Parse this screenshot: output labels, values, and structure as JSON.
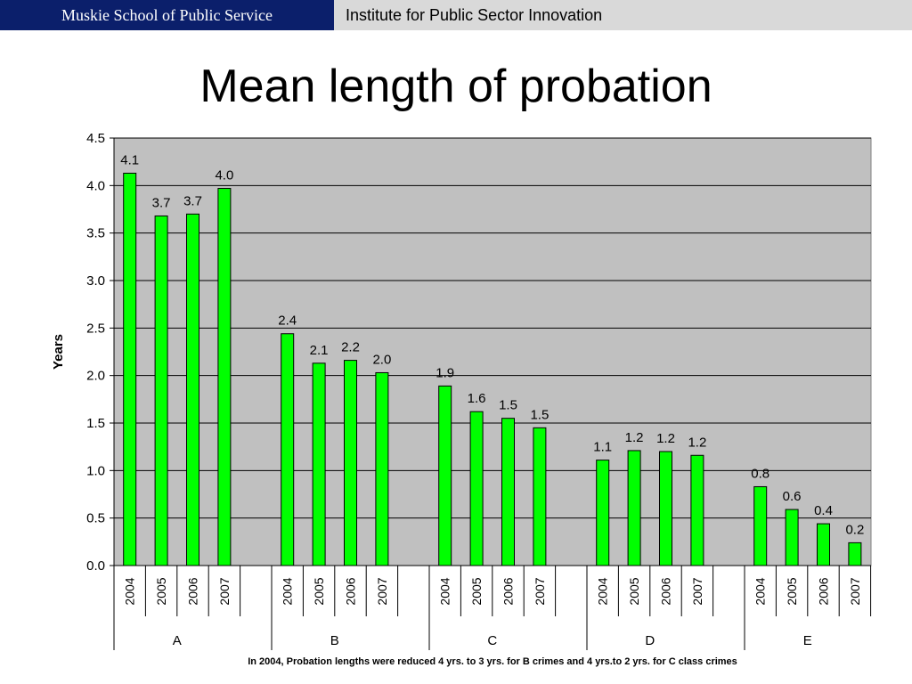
{
  "header": {
    "left": "Muskie School of Public Service",
    "right": "Institute for Public Sector Innovation"
  },
  "title": "Mean length of probation",
  "footnote": "In 2004, Probation lengths were reduced 4 yrs. to 3 yrs. for B crimes and 4 yrs.to 2 yrs. for C class crimes",
  "colors": {
    "bar": "#00ff00",
    "plot_bg": "#c0c0c0",
    "grid": "#000000"
  },
  "chart_data": {
    "type": "bar",
    "ylabel": "Years",
    "ylim": [
      0,
      4.5
    ],
    "yticks": [
      "0.0",
      "0.5",
      "1.0",
      "1.5",
      "2.0",
      "2.5",
      "3.0",
      "3.5",
      "4.0",
      "4.5"
    ],
    "grid": true,
    "groups": [
      {
        "name": "A",
        "categories": [
          "2004",
          "2005",
          "2006",
          "2007"
        ],
        "values": [
          4.13,
          3.68,
          3.7,
          3.97
        ],
        "labels": [
          "4.1",
          "3.7",
          "3.7",
          "4.0"
        ]
      },
      {
        "name": "B",
        "categories": [
          "2004",
          "2005",
          "2006",
          "2007"
        ],
        "values": [
          2.44,
          2.13,
          2.16,
          2.03
        ],
        "labels": [
          "2.4",
          "2.1",
          "2.2",
          "2.0"
        ]
      },
      {
        "name": "C",
        "categories": [
          "2004",
          "2005",
          "2006",
          "2007"
        ],
        "values": [
          1.89,
          1.62,
          1.55,
          1.45
        ],
        "labels": [
          "1.9",
          "1.6",
          "1.5",
          "1.5"
        ]
      },
      {
        "name": "D",
        "categories": [
          "2004",
          "2005",
          "2006",
          "2007"
        ],
        "values": [
          1.11,
          1.21,
          1.2,
          1.16
        ],
        "labels": [
          "1.1",
          "1.2",
          "1.2",
          "1.2"
        ]
      },
      {
        "name": "E",
        "categories": [
          "2004",
          "2005",
          "2006",
          "2007"
        ],
        "values": [
          0.83,
          0.59,
          0.44,
          0.24
        ],
        "labels": [
          "0.8",
          "0.6",
          "0.4",
          "0.2"
        ]
      }
    ]
  }
}
